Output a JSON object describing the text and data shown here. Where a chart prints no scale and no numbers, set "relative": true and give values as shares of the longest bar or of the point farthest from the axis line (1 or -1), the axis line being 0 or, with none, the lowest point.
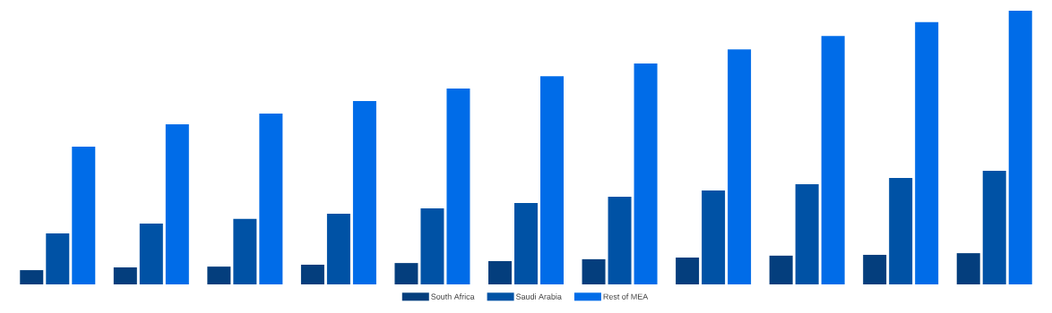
{
  "chart_data": {
    "type": "bar",
    "relative": true,
    "legend": "bottom",
    "categories": [
      null,
      null,
      null,
      null,
      null,
      null,
      null,
      null,
      null,
      null,
      null
    ],
    "series": [
      {
        "name": "South Africa",
        "color": "#043e7d",
        "values": [
          0.052,
          0.062,
          0.065,
          0.072,
          0.078,
          0.085,
          0.092,
          0.098,
          0.105,
          0.108,
          0.114
        ]
      },
      {
        "name": "Saudi Arabia",
        "color": "#0052a5",
        "values": [
          0.186,
          0.222,
          0.239,
          0.258,
          0.278,
          0.297,
          0.32,
          0.343,
          0.366,
          0.389,
          0.415
        ]
      },
      {
        "name": "Rest of MEA",
        "color": "#006ce8",
        "values": [
          0.503,
          0.585,
          0.624,
          0.67,
          0.716,
          0.761,
          0.807,
          0.859,
          0.908,
          0.958,
          1.0
        ]
      }
    ]
  }
}
